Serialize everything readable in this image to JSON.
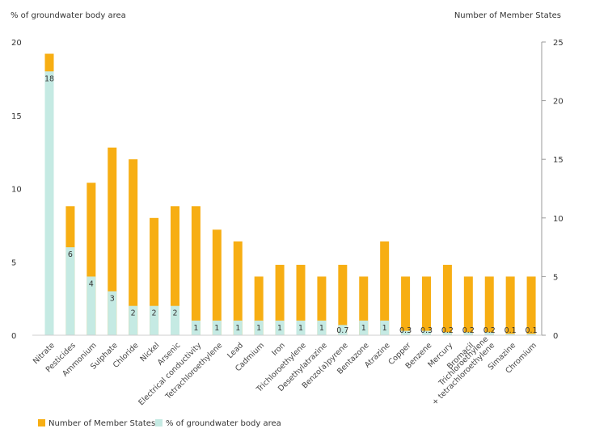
{
  "chart_data": {
    "type": "bar",
    "left_axis_title": "% of groundwater body area",
    "right_axis_title": "Number of Member  States",
    "left_ylim": [
      0,
      20
    ],
    "right_ylim": [
      0,
      25
    ],
    "left_ticks": [
      "0",
      "5",
      "10",
      "15",
      "20"
    ],
    "right_ticks": [
      "0",
      "5",
      "10",
      "15",
      "20",
      "25"
    ],
    "categories": [
      "Nitrate",
      "Pesticides",
      "Ammonium",
      "Sulphate",
      "Chloride",
      "Nickel",
      "Arsenic",
      "Electrical conductivity",
      "Tetrachloroethylene",
      "Lead",
      "Cadmium",
      "Iron",
      "Trichloroethylene",
      "Desethylatrazine",
      "Benzo(a)pyrene",
      "Bentazone",
      "Atrazine",
      "Copper",
      "Benzene",
      "Mercury",
      "Bromacil",
      "Trichloroethylene\n+ tetrachloroethylene",
      "Simazine",
      "Chromium"
    ],
    "series": [
      {
        "name": "Number of Member States",
        "axis": "right",
        "color": "#F7AE13",
        "values": [
          24,
          11,
          13,
          16,
          15,
          10,
          11,
          11,
          9,
          8,
          5,
          6,
          6,
          5,
          6,
          5,
          8,
          5,
          5,
          6,
          5,
          5,
          5,
          5
        ]
      },
      {
        "name": "% of groundwater body area",
        "axis": "left",
        "color": "#C5EAE3",
        "values": [
          18,
          6,
          4,
          3,
          2,
          2,
          2,
          1,
          1,
          1,
          1,
          1,
          1,
          1,
          0.7,
          1,
          1,
          0.3,
          0.3,
          0.2,
          0.2,
          0.2,
          0.1,
          0.1
        ],
        "labels": [
          "18",
          "6",
          "4",
          "3",
          "2",
          "2",
          "2",
          "1",
          "1",
          "1",
          "1",
          "1",
          "1",
          "1",
          "0.7",
          "1",
          "1",
          "0.3",
          "0.3",
          "0.2",
          "0.2",
          "0.2",
          "0.1",
          "0.1"
        ]
      }
    ],
    "legend": [
      "Number of Member States",
      "% of groundwater body area"
    ]
  }
}
